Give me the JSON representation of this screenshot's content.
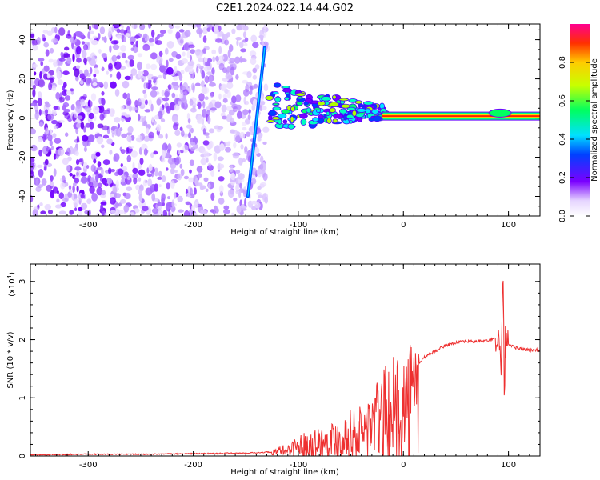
{
  "title": "C2E1.2024.022.14.44.G02",
  "chart_data": [
    {
      "type": "heatmap",
      "xlabel": "Height of straight line (km)",
      "ylabel": "Frequency (Hz)",
      "xlim": [
        -355,
        130
      ],
      "ylim": [
        -50,
        48
      ],
      "xticks": [
        -300,
        -200,
        -100,
        0,
        100
      ],
      "yticks": [
        -40,
        -20,
        0,
        20,
        40
      ],
      "colorbar": {
        "label": "Normalized spectral amplitude",
        "range": [
          0,
          1
        ],
        "ticks": [
          "0.0",
          "0.2",
          "0.4",
          "0.6",
          "0.8"
        ],
        "tick_values": [
          0.0,
          0.2,
          0.4,
          0.6,
          0.8
        ]
      },
      "features": {
        "noise_region_x": [
          -355,
          -130
        ],
        "diagonal_line": {
          "x": [
            -148,
            -132
          ],
          "y": [
            -40,
            36
          ]
        },
        "signal_band_freq": 1,
        "signal_band_x": [
          -130,
          130
        ]
      },
      "grid": false
    },
    {
      "type": "line",
      "xlabel": "Height of straight line (km)",
      "ylabel": "SNR (10 * v/v)",
      "multiplier": "(x10",
      "multiplier_exp": "4",
      "xlim": [
        -355,
        130
      ],
      "ylim": [
        0,
        3.3
      ],
      "xticks": [
        -300,
        -200,
        -100,
        0,
        100
      ],
      "yticks": [
        0,
        1,
        2,
        3
      ],
      "series": [
        {
          "color": "#ee3030",
          "x": [
            -355,
            -300,
            -250,
            -200,
            -150,
            -125,
            -110,
            -100,
            -90,
            -80,
            -70,
            -60,
            -50,
            -40,
            -30,
            -20,
            -10,
            -5,
            0,
            5,
            10,
            15,
            20,
            25,
            30,
            40,
            50,
            60,
            70,
            80,
            85,
            90,
            93,
            95,
            96,
            97,
            100,
            110,
            120,
            130
          ],
          "y": [
            0.02,
            0.03,
            0.03,
            0.04,
            0.05,
            0.07,
            0.15,
            0.25,
            0.3,
            0.35,
            0.4,
            0.45,
            0.55,
            0.6,
            0.8,
            1.0,
            1.15,
            1.2,
            1.25,
            1.35,
            1.5,
            1.6,
            1.7,
            1.75,
            1.8,
            1.9,
            1.95,
            1.97,
            1.97,
            1.98,
            2.0,
            2.05,
            1.6,
            3.1,
            0.9,
            2.0,
            1.9,
            1.85,
            1.82,
            1.82
          ]
        }
      ],
      "grid": false
    }
  ]
}
